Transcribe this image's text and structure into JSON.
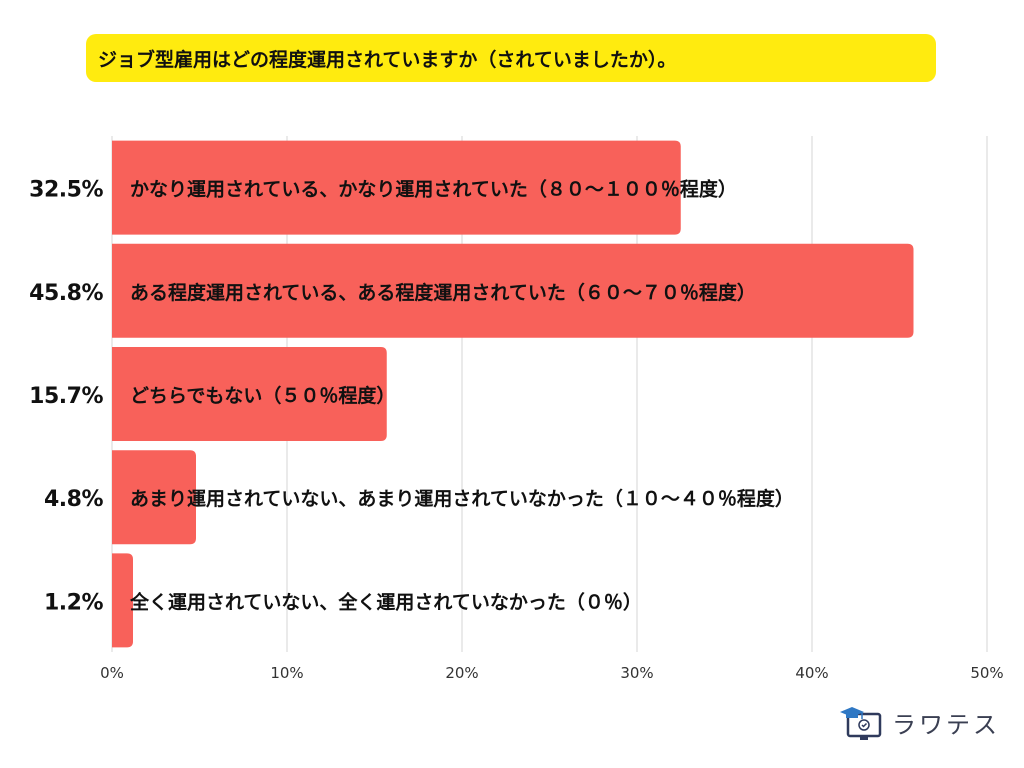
{
  "title": "ジョブ型雇用はどの程度運用されていますか（されていましたか）。",
  "chart_data": {
    "type": "bar",
    "orientation": "horizontal",
    "categories": [
      "かなり運用されている、かなり運用されていた（８０～１００％程度）",
      "ある程度運用されている、ある程度運用されていた（６０～７０％程度）",
      "どちらでもない（５０％程度）",
      "あまり運用されていない、あまり運用されていなかった（１０～４０％程度）",
      "全く運用されていない、全く運用されていなかった（０％）"
    ],
    "values": [
      32.5,
      45.8,
      15.7,
      4.8,
      1.2
    ],
    "value_labels": [
      "32.5%",
      "45.8%",
      "15.7%",
      "4.8%",
      "1.2%"
    ],
    "xlim": [
      0,
      50
    ],
    "x_ticks": [
      0,
      10,
      20,
      30,
      40,
      50
    ],
    "x_tick_labels": [
      "0%",
      "10%",
      "20%",
      "30%",
      "40%",
      "50%"
    ],
    "grid": "vertical",
    "bar_color": "#f8615a"
  },
  "brand": {
    "name": "ラワテス"
  }
}
